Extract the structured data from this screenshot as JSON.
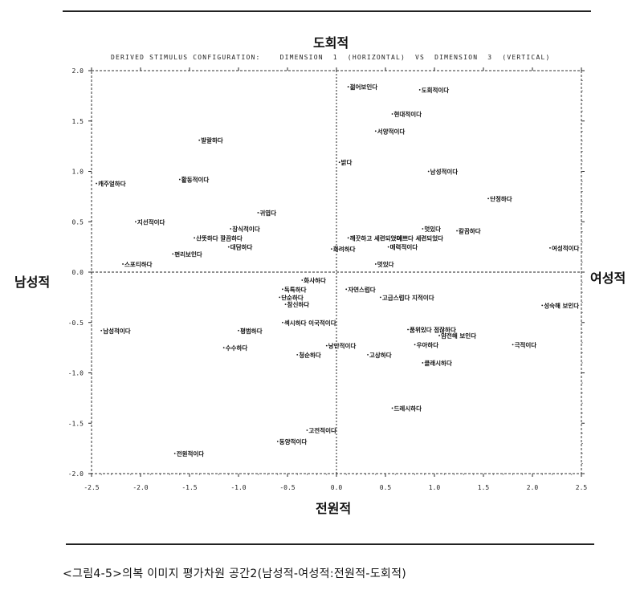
{
  "axis_words": {
    "top": "도회적",
    "bottom": "전원적",
    "left": "남성적",
    "right": "여성적"
  },
  "config_title": "DERIVED STIMULUS CONFIGURATION:    DIMENSION  1  (HORIZONTAL)  VS  DIMENSION  3  (VERTICAL)",
  "caption": "<그림4-5>의복 이미지 평가차원 공간2(남성적-여성적:전원적-도회적)",
  "chart_data": {
    "type": "scatter",
    "title": "DERIVED STIMULUS CONFIGURATION:    DIMENSION  1  (HORIZONTAL)  VS  DIMENSION  3  (VERTICAL)",
    "xlim": [
      -2.5,
      2.5
    ],
    "ylim": [
      -2.0,
      2.0
    ],
    "x_ticks": [
      "-2.5",
      "-2.0",
      "-1.5",
      "-1.0",
      "-0.5",
      "0.0",
      "0.5",
      "1.0",
      "1.5",
      "2.0",
      "2.5"
    ],
    "y_ticks": [
      "2.0",
      "1.5",
      "1.0",
      "0.5",
      "0.0",
      "-0.5",
      "-1.0",
      "-1.5",
      "-2.0"
    ],
    "points": [
      {
        "label": "젊어보인다",
        "x": 0.12,
        "y": 1.84
      },
      {
        "label": "도회적이다",
        "x": 0.85,
        "y": 1.81
      },
      {
        "label": "현대적이다",
        "x": 0.57,
        "y": 1.57
      },
      {
        "label": "서양적이다",
        "x": 0.4,
        "y": 1.4
      },
      {
        "label": "발랄하다",
        "x": -1.4,
        "y": 1.31
      },
      {
        "label": "밝다",
        "x": 0.03,
        "y": 1.09
      },
      {
        "label": "남성적이다",
        "x": 0.94,
        "y": 1.0
      },
      {
        "label": "활동적이다",
        "x": -1.6,
        "y": 0.92
      },
      {
        "label": "캐주얼하다",
        "x": -2.45,
        "y": 0.88
      },
      {
        "label": "단정하다",
        "x": 1.55,
        "y": 0.73
      },
      {
        "label": "귀엽다",
        "x": -0.8,
        "y": 0.59
      },
      {
        "label": "지선적이다",
        "x": -2.05,
        "y": 0.5
      },
      {
        "label": "장식적이다",
        "x": -1.08,
        "y": 0.43
      },
      {
        "label": "멋있다",
        "x": 0.88,
        "y": 0.43
      },
      {
        "label": "칼끔하다",
        "x": 1.23,
        "y": 0.41
      },
      {
        "label": "산뜻하다 깔끔하다",
        "x": -1.45,
        "y": 0.34
      },
      {
        "label": "깨끗하고 세련되었다",
        "x": 0.12,
        "y": 0.34
      },
      {
        "label": "예쁘다 세련되었다",
        "x": 0.6,
        "y": 0.34
      },
      {
        "label": "대담하다",
        "x": -1.1,
        "y": 0.25
      },
      {
        "label": "매력적이다",
        "x": 0.53,
        "y": 0.25
      },
      {
        "label": "화려하다",
        "x": -0.05,
        "y": 0.23
      },
      {
        "label": "여성적이다",
        "x": 2.18,
        "y": 0.24
      },
      {
        "label": "편리보인다",
        "x": -1.67,
        "y": 0.18
      },
      {
        "label": "스포티하다",
        "x": -2.18,
        "y": 0.08
      },
      {
        "label": "멋있다",
        "x": 0.4,
        "y": 0.08
      },
      {
        "label": "화사하다",
        "x": -0.35,
        "y": -0.08
      },
      {
        "label": "독특하다",
        "x": -0.55,
        "y": -0.17
      },
      {
        "label": "자연스럽다",
        "x": 0.1,
        "y": -0.17
      },
      {
        "label": "단순하다",
        "x": -0.58,
        "y": -0.25
      },
      {
        "label": "고급스럽다 지적이다",
        "x": 0.45,
        "y": -0.25
      },
      {
        "label": "참신하다",
        "x": -0.52,
        "y": -0.32
      },
      {
        "label": "성숙해 보인다",
        "x": 2.1,
        "y": -0.33
      },
      {
        "label": "섹시하다 이국적이다",
        "x": -0.55,
        "y": -0.5
      },
      {
        "label": "남성적이다",
        "x": -2.4,
        "y": -0.58
      },
      {
        "label": "평범하다",
        "x": -1.0,
        "y": -0.58
      },
      {
        "label": "품위있다 점잖하다",
        "x": 0.73,
        "y": -0.57
      },
      {
        "label": "얌전해 보인다",
        "x": 1.05,
        "y": -0.63
      },
      {
        "label": "수수하다",
        "x": -1.15,
        "y": -0.75
      },
      {
        "label": "낭만적이다",
        "x": -0.1,
        "y": -0.73
      },
      {
        "label": "우아하다",
        "x": 0.8,
        "y": -0.72
      },
      {
        "label": "극적이다",
        "x": 1.8,
        "y": -0.72
      },
      {
        "label": "청순하다",
        "x": -0.4,
        "y": -0.82
      },
      {
        "label": "고상하다",
        "x": 0.32,
        "y": -0.82
      },
      {
        "label": "클래시하다",
        "x": 0.88,
        "y": -0.9
      },
      {
        "label": "드레시하다",
        "x": 0.57,
        "y": -1.35
      },
      {
        "label": "고전적이다",
        "x": -0.3,
        "y": -1.57
      },
      {
        "label": "동양적이다",
        "x": -0.6,
        "y": -1.68
      },
      {
        "label": "전원적이다",
        "x": -1.65,
        "y": -1.8
      }
    ]
  }
}
